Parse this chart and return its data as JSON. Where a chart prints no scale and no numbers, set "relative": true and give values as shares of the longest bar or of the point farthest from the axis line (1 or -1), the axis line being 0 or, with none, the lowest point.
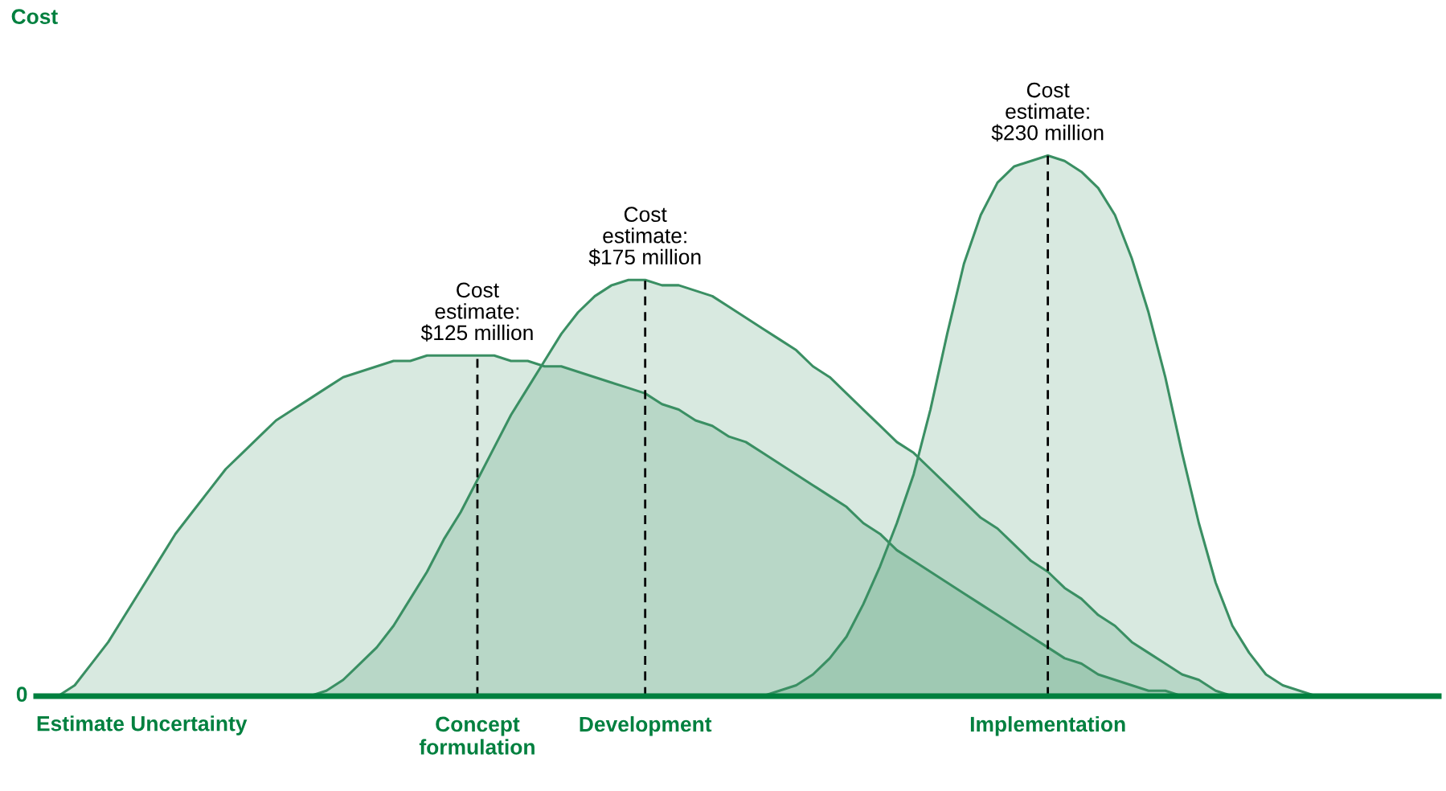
{
  "chart_data": {
    "type": "area",
    "relative": true,
    "xlabel": "Estimate Uncertainty",
    "categories": [
      null,
      null,
      null,
      null,
      null,
      null,
      null,
      null,
      null,
      null,
      null,
      null,
      null,
      null,
      null,
      null,
      null,
      null,
      null,
      null,
      null,
      null,
      null,
      null,
      null,
      "Concept\nformulation",
      null,
      null,
      null,
      null,
      null,
      null,
      null,
      null,
      null,
      "Development",
      null,
      null,
      null,
      null,
      null,
      null,
      null,
      null,
      null,
      null,
      null,
      null,
      null,
      null,
      null,
      null,
      null,
      null,
      null,
      null,
      null,
      null,
      null,
      "Implementation",
      null,
      null,
      null,
      null,
      null,
      null,
      null,
      null,
      null,
      null,
      null,
      null,
      null,
      null,
      null,
      null,
      null,
      null,
      null,
      null,
      null,
      null,
      null
    ],
    "series": [
      {
        "color": "#3a8f63",
        "values": [
          0,
          0.02,
          0.06,
          0.1,
          0.15,
          0.2,
          0.25,
          0.3,
          0.34,
          0.38,
          0.42,
          0.45,
          0.48,
          0.51,
          0.53,
          0.55,
          0.57,
          0.59,
          0.6,
          0.61,
          0.62,
          0.62,
          0.63,
          0.63,
          0.63,
          0.63,
          0.63,
          0.62,
          0.62,
          0.61,
          0.61,
          0.6,
          0.59,
          0.58,
          0.57,
          0.56,
          0.54,
          0.53,
          0.51,
          0.5,
          0.48,
          0.47,
          0.45,
          0.43,
          0.41,
          0.39,
          0.37,
          0.35,
          0.32,
          0.3,
          0.27,
          0.25,
          0.23,
          0.21,
          0.19,
          0.17,
          0.15,
          0.13,
          0.11,
          0.09,
          0.07,
          0.06,
          0.04,
          0.03,
          0.02,
          0.01,
          0.01,
          0,
          null,
          null,
          null,
          null,
          null,
          null,
          null,
          null,
          null,
          null,
          null,
          null,
          null,
          null,
          null
        ]
      },
      {
        "color": "#3a8f63",
        "values": [
          null,
          null,
          null,
          null,
          null,
          null,
          null,
          null,
          null,
          null,
          null,
          null,
          null,
          null,
          null,
          0,
          0.01,
          0.03,
          0.06,
          0.09,
          0.13,
          0.18,
          0.23,
          0.29,
          0.34,
          0.4,
          0.46,
          0.52,
          0.57,
          0.62,
          0.67,
          0.71,
          0.74,
          0.76,
          0.77,
          0.77,
          0.76,
          0.76,
          0.75,
          0.74,
          0.72,
          0.7,
          0.68,
          0.66,
          0.64,
          0.61,
          0.59,
          0.56,
          0.53,
          0.5,
          0.47,
          0.45,
          0.42,
          0.39,
          0.36,
          0.33,
          0.31,
          0.28,
          0.25,
          0.23,
          0.2,
          0.18,
          0.15,
          0.13,
          0.1,
          0.08,
          0.06,
          0.04,
          0.03,
          0.01,
          0,
          null,
          null,
          null,
          null,
          null,
          null,
          null,
          null,
          null,
          null,
          null,
          null
        ]
      },
      {
        "color": "#3a8f63",
        "values": [
          null,
          null,
          null,
          null,
          null,
          null,
          null,
          null,
          null,
          null,
          null,
          null,
          null,
          null,
          null,
          null,
          null,
          null,
          null,
          null,
          null,
          null,
          null,
          null,
          null,
          null,
          null,
          null,
          null,
          null,
          null,
          null,
          null,
          null,
          null,
          null,
          null,
          null,
          null,
          null,
          null,
          null,
          0,
          0.01,
          0.02,
          0.04,
          0.07,
          0.11,
          0.17,
          0.24,
          0.32,
          0.41,
          0.53,
          0.67,
          0.8,
          0.89,
          0.95,
          0.98,
          0.99,
          1,
          0.99,
          0.97,
          0.94,
          0.89,
          0.81,
          0.71,
          0.59,
          0.45,
          0.32,
          0.21,
          0.13,
          0.08,
          0.04,
          0.02,
          0.01,
          0,
          null,
          null,
          null,
          null,
          null,
          null,
          null
        ]
      }
    ],
    "ref_lines": [
      {
        "axis": "x",
        "value": "Concept\nformulation",
        "color": "#000000",
        "line_style": "dashed"
      },
      {
        "axis": "x",
        "value": "Development",
        "color": "#000000",
        "line_style": "dashed"
      },
      {
        "axis": "x",
        "value": "Implementation",
        "color": "#000000",
        "line_style": "dashed"
      }
    ],
    "annotations": [
      "Cost",
      {
        "text": "Cost\nestimate:\n$125 million",
        "x": "Concept\nformulation",
        "y": 0.63
      },
      {
        "text": "Cost\nestimate:\n$175 million",
        "x": "Development",
        "y": 0.77
      },
      {
        "text": "Cost\nestimate:\n$230 million",
        "x": "Implementation",
        "y": 1
      },
      "0"
    ]
  }
}
